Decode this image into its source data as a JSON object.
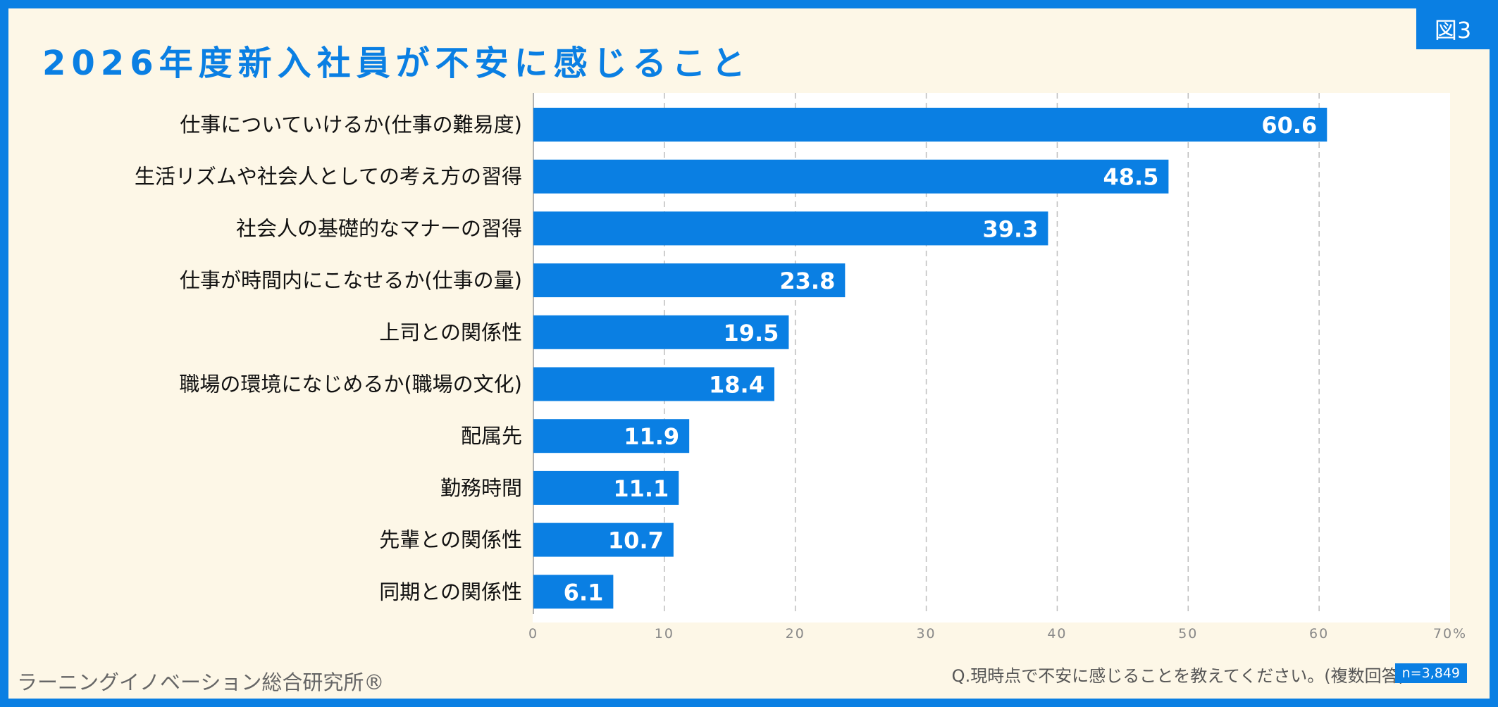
{
  "figure_label": "図3",
  "source": "ラーニングイノベーション総合研究所®",
  "question": "Q.現時点で不安に感じることを教えてください。(複数回答)",
  "sample": "n=3,849",
  "colors": {
    "accent": "#0a7fe3",
    "background": "#fdf7e7"
  },
  "chart_data": {
    "type": "bar",
    "orientation": "horizontal",
    "title": "2026年度新入社員が不安に感じること",
    "unit": "%",
    "xlim": [
      0,
      70
    ],
    "ticks": [
      0,
      10,
      20,
      30,
      40,
      50,
      60,
      70
    ],
    "tick_labels": [
      "0",
      "10",
      "20",
      "30",
      "40",
      "50",
      "60",
      "70%"
    ],
    "grid": "vertical-dashed",
    "categories": [
      "仕事についていけるか(仕事の難易度)",
      "生活リズムや社会人としての考え方の習得",
      "社会人の基礎的なマナーの習得",
      "仕事が時間内にこなせるか(仕事の量)",
      "上司との関係性",
      "職場の環境になじめるか(職場の文化)",
      "配属先",
      "勤務時間",
      "先輩との関係性",
      "同期との関係性"
    ],
    "values": [
      60.6,
      48.5,
      39.3,
      23.8,
      19.5,
      18.4,
      11.9,
      11.1,
      10.7,
      6.1
    ],
    "value_labels": [
      "60.6",
      "48.5",
      "39.3",
      "23.8",
      "19.5",
      "18.4",
      "11.9",
      "11.1",
      "10.7",
      "6.1"
    ]
  }
}
